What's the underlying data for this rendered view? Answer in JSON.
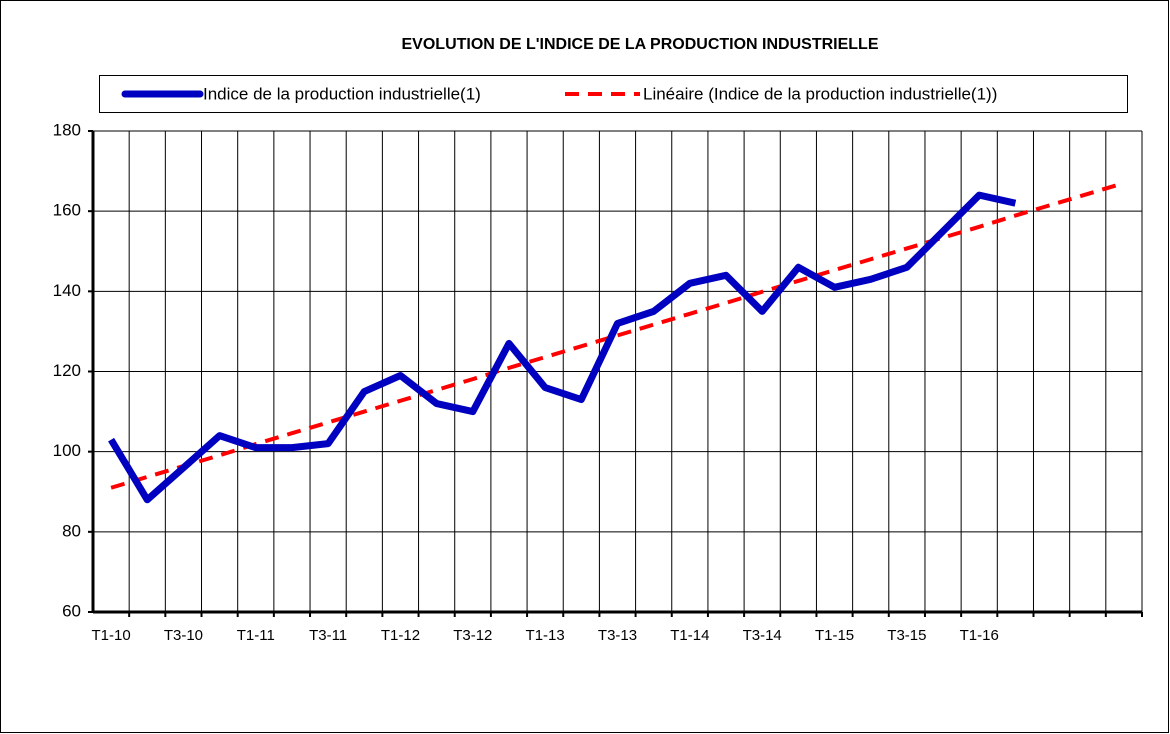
{
  "chart_data": {
    "type": "line",
    "title": "EVOLUTION DE L'INDICE DE LA PRODUCTION INDUSTRIELLE",
    "categories": [
      "T1-10",
      null,
      "T3-10",
      null,
      "T1-11",
      null,
      "T3-11",
      null,
      "T1-12",
      null,
      "T3-12",
      null,
      "T1-13",
      null,
      "T3-13",
      null,
      "T1-14",
      null,
      "T3-14",
      null,
      "T1-15",
      null,
      "T3-15",
      null,
      "T1-16",
      null,
      null,
      null,
      null
    ],
    "series": [
      {
        "name": "Indice de la production industrielle(1)",
        "color": "#0000c0",
        "dash": false,
        "values": [
          103,
          88,
          96,
          104,
          101,
          101,
          102,
          115,
          119,
          112,
          110,
          127,
          116,
          113,
          132,
          135,
          142,
          144,
          135,
          146,
          141,
          143,
          146,
          155,
          164,
          162,
          null,
          null,
          null
        ]
      },
      {
        "name": "Linéaire (Indice de la production industrielle(1))",
        "color": "#ff0000",
        "dash": true,
        "values": [
          91,
          93.7,
          96.4,
          99.1,
          101.9,
          104.6,
          107.3,
          110,
          112.7,
          115.4,
          118.1,
          120.9,
          123.6,
          126.3,
          129,
          131.7,
          134.4,
          137.1,
          139.9,
          142.6,
          145.3,
          148,
          150.7,
          153.4,
          156.1,
          158.9,
          161.6,
          164.3,
          167
        ]
      }
    ],
    "ylim": [
      60,
      180
    ],
    "yticks": [
      60,
      80,
      100,
      120,
      140,
      160,
      180
    ],
    "grid": true,
    "legend": "top"
  }
}
